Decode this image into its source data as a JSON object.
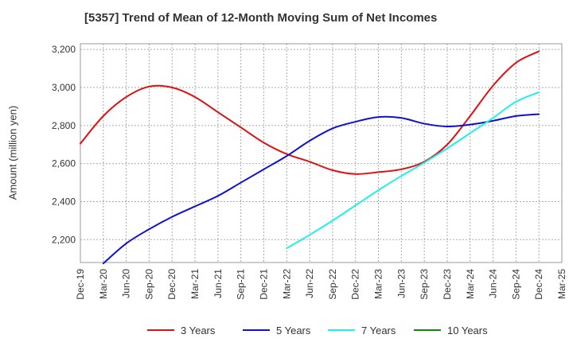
{
  "chart_data": {
    "type": "line",
    "title": "[5357]  Trend of Mean of 12-Month Moving Sum of Net Incomes",
    "ylabel": "Amount (million yen)",
    "xlabel": "",
    "x_ticks": [
      "Dec-19",
      "Mar-20",
      "Jun-20",
      "Sep-20",
      "Dec-20",
      "Mar-21",
      "Jun-21",
      "Sep-21",
      "Dec-21",
      "Mar-22",
      "Jun-22",
      "Sep-22",
      "Dec-22",
      "Mar-23",
      "Jun-23",
      "Sep-23",
      "Dec-23",
      "Mar-24",
      "Jun-24",
      "Sep-24",
      "Dec-24",
      "Mar-25"
    ],
    "y_ticks": [
      2200,
      2400,
      2600,
      2800,
      3000,
      3200
    ],
    "y_tick_labels": [
      "2,200",
      "2,400",
      "2,600",
      "2,800",
      "3,000",
      "3,200"
    ],
    "ylim": [
      2080,
      3230
    ],
    "grid": true,
    "legend_position": "bottom",
    "series": [
      {
        "name": "3 Years",
        "color": "#dd1111",
        "x": [
          "Dec-19",
          "Mar-20",
          "Jun-20",
          "Sep-20",
          "Dec-20",
          "Mar-21",
          "Jun-21",
          "Sep-21",
          "Dec-21",
          "Mar-22",
          "Jun-22",
          "Sep-22",
          "Dec-22",
          "Mar-23",
          "Jun-23",
          "Sep-23",
          "Dec-23",
          "Mar-24",
          "Jun-24",
          "Sep-24",
          "Dec-24"
        ],
        "values": [
          2705,
          2850,
          2950,
          3005,
          3000,
          2950,
          2870,
          2790,
          2710,
          2650,
          2610,
          2565,
          2545,
          2555,
          2570,
          2610,
          2700,
          2850,
          3010,
          3130,
          3190
        ]
      },
      {
        "name": "5 Years",
        "color": "#1111cc",
        "x": [
          "Mar-20",
          "Jun-20",
          "Sep-20",
          "Dec-20",
          "Mar-21",
          "Jun-21",
          "Sep-21",
          "Dec-21",
          "Mar-22",
          "Jun-22",
          "Sep-22",
          "Dec-22",
          "Mar-23",
          "Jun-23",
          "Sep-23",
          "Dec-23",
          "Mar-24",
          "Jun-24",
          "Sep-24",
          "Dec-24"
        ],
        "values": [
          2075,
          2180,
          2255,
          2320,
          2375,
          2430,
          2500,
          2570,
          2640,
          2720,
          2785,
          2820,
          2845,
          2840,
          2810,
          2795,
          2805,
          2825,
          2850,
          2860
        ]
      },
      {
        "name": "7 Years",
        "color": "#22eeee",
        "x": [
          "Mar-22",
          "Jun-22",
          "Sep-22",
          "Dec-22",
          "Mar-23",
          "Jun-23",
          "Sep-23",
          "Dec-23",
          "Mar-24",
          "Jun-24",
          "Sep-24",
          "Dec-24"
        ],
        "values": [
          2155,
          2225,
          2300,
          2380,
          2460,
          2535,
          2605,
          2680,
          2760,
          2840,
          2925,
          2975
        ]
      },
      {
        "name": "10 Years",
        "color": "#118811",
        "x": [],
        "values": []
      }
    ]
  }
}
